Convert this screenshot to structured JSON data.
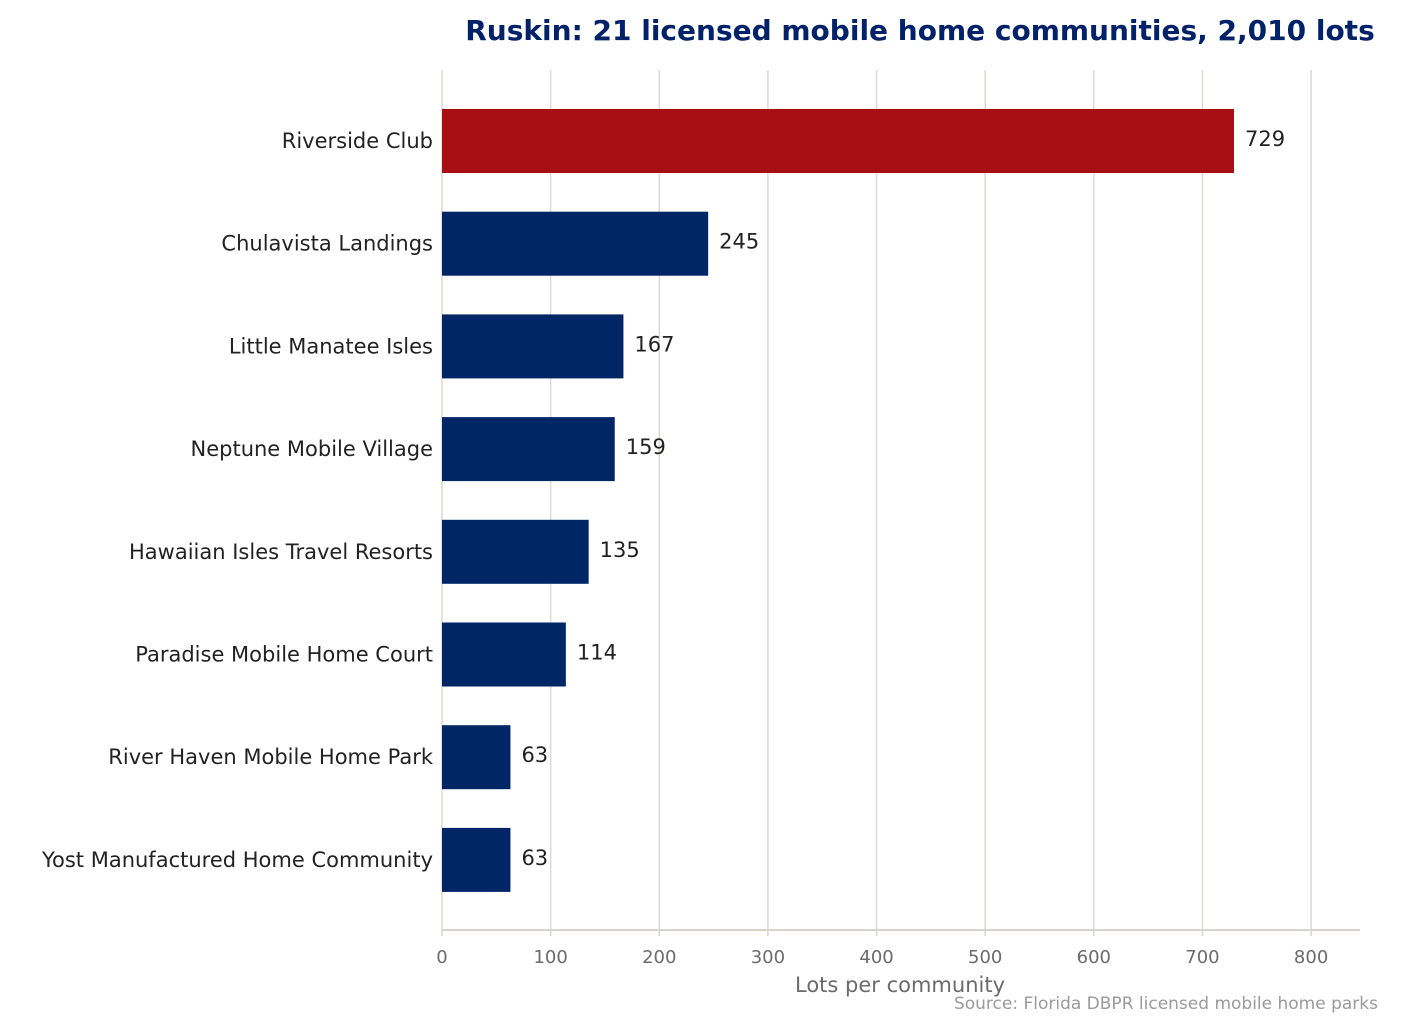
{
  "chart_data": {
    "type": "bar",
    "orientation": "horizontal",
    "title": "Ruskin: 21 licensed mobile home communities, 2,010 lots",
    "xlabel": "Lots per community",
    "ylabel": "",
    "source": "Source: Florida DBPR licensed mobile home parks",
    "categories": [
      "Riverside Club",
      "Chulavista Landings",
      "Little Manatee Isles",
      "Neptune Mobile Village",
      "Hawaiian Isles Travel Resorts",
      "Paradise Mobile Home Court",
      "River Haven Mobile Home Park",
      "Yost Manufactured Home Community"
    ],
    "values": [
      729,
      245,
      167,
      159,
      135,
      114,
      63,
      63
    ],
    "highlight_index": 0,
    "xlim": [
      0,
      845
    ],
    "xticks": [
      0,
      100,
      200,
      300,
      400,
      500,
      600,
      700,
      800
    ],
    "grid": "vertical",
    "legend": "none",
    "colors": {
      "highlight": "#A80F15",
      "bar": "#012666",
      "title": "#012169",
      "grid": "#dcdcd6",
      "axis": "#d6d3c8"
    }
  }
}
